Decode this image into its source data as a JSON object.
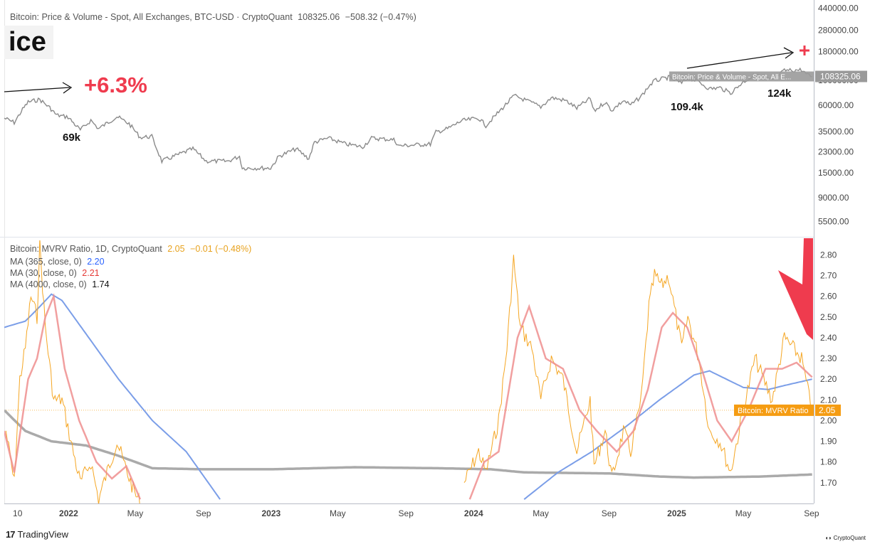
{
  "header": {
    "price_legend_title": "Bitcoin: Price & Volume - Spot, All Exchanges, BTC-USD · CryptoQuant",
    "price_legend_value": "108325.06",
    "price_legend_change": "−508.32 (−0.47%)",
    "price_label_snippet": "ice"
  },
  "indicator_legend": {
    "title": "Bitcoin: MVRV Ratio, 1D, CryptoQuant",
    "value": "2.05",
    "change": "−0.01 (−0.48%)",
    "ma365_label": "MA (365, close, 0)",
    "ma365_value": "2.20",
    "ma30_label": "MA (30, close, 0)",
    "ma30_value": "2.21",
    "ma4000_label": "MA (4000, close, 0)",
    "ma4000_value": "1.74"
  },
  "annotations": {
    "pct": "+6.3%",
    "high1": "69k",
    "high2": "109.4k",
    "high3": "124k"
  },
  "colors": {
    "price": "#8a8a8a",
    "mvrv": "#f5a623",
    "ma365": "#7b9ee8",
    "ma30": "#ef8e8e",
    "ma4000": "#aaaaaa",
    "annotation_red": "#ef3b4e"
  },
  "branding": {
    "tradingview": "TradingView",
    "cryptoquant": "CryptoQuant"
  },
  "chart_data": [
    {
      "type": "line",
      "name_legend": "Bitcoin: Price & Volume - Spot, All Exchanges, BTC-USD · CryptoQuant",
      "yscale": "log",
      "ylim": [
        4200,
        450000
      ],
      "y_ticks": [
        440000,
        280000,
        180000,
        100000,
        60000,
        35000,
        23000,
        15000,
        9000,
        5500
      ],
      "y_tick_labels": [
        "440000.00",
        "280000.00",
        "180000.00",
        "100000.00",
        "60000.00",
        "35000.00",
        "23000.00",
        "15000.00",
        "9000.00",
        "5500.00"
      ],
      "last_value_label": "108325.06",
      "last_value_tag": "Bitcoin: Price & Volume - Spot, All E...",
      "series": [
        {
          "values": [
            [
              "2021-09-07",
              46000
            ],
            [
              "2021-09-25",
              42000
            ],
            [
              "2021-10-10",
              55000
            ],
            [
              "2021-10-20",
              64000
            ],
            [
              "2021-11-10",
              67500
            ],
            [
              "2021-11-28",
              57000
            ],
            [
              "2021-12-10",
              49000
            ],
            [
              "2021-12-31",
              47000
            ],
            [
              "2022-01-22",
              36000
            ],
            [
              "2022-02-10",
              44000
            ],
            [
              "2022-02-24",
              37000
            ],
            [
              "2022-03-29",
              47500
            ],
            [
              "2022-04-20",
              41000
            ],
            [
              "2022-05-10",
              31000
            ],
            [
              "2022-05-31",
              31500
            ],
            [
              "2022-06-18",
              19000
            ],
            [
              "2022-07-10",
              21000
            ],
            [
              "2022-08-13",
              24500
            ],
            [
              "2022-09-06",
              19000
            ],
            [
              "2022-10-15",
              19000
            ],
            [
              "2022-11-05",
              21000
            ],
            [
              "2022-11-10",
              16500
            ],
            [
              "2022-12-31",
              16500
            ],
            [
              "2023-01-15",
              21000
            ],
            [
              "2023-02-15",
              24500
            ],
            [
              "2023-03-10",
              20000
            ],
            [
              "2023-03-20",
              28000
            ],
            [
              "2023-04-14",
              30500
            ],
            [
              "2023-05-15",
              27000
            ],
            [
              "2023-06-15",
              25500
            ],
            [
              "2023-07-01",
              30500
            ],
            [
              "2023-08-10",
              29500
            ],
            [
              "2023-08-20",
              26000
            ],
            [
              "2023-09-15",
              26500
            ],
            [
              "2023-10-15",
              27000
            ],
            [
              "2023-10-25",
              34500
            ],
            [
              "2023-11-15",
              37000
            ],
            [
              "2023-12-10",
              43500
            ],
            [
              "2024-01-10",
              46000
            ],
            [
              "2024-01-23",
              39500
            ],
            [
              "2024-02-15",
              52000
            ],
            [
              "2024-03-14",
              73000
            ],
            [
              "2024-04-15",
              63000
            ],
            [
              "2024-05-01",
              58000
            ],
            [
              "2024-05-20",
              70000
            ],
            [
              "2024-06-15",
              66000
            ],
            [
              "2024-07-05",
              56500
            ],
            [
              "2024-07-29",
              69000
            ],
            [
              "2024-08-05",
              53000
            ],
            [
              "2024-08-25",
              64000
            ],
            [
              "2024-09-06",
              54000
            ],
            [
              "2024-09-27",
              66000
            ],
            [
              "2024-10-10",
              60000
            ],
            [
              "2024-10-29",
              72000
            ],
            [
              "2024-11-12",
              89000
            ],
            [
              "2024-11-22",
              99000
            ],
            [
              "2024-12-17",
              106000
            ],
            [
              "2025-01-10",
              94000
            ],
            [
              "2025-01-21",
              105000
            ],
            [
              "2025-02-10",
              97000
            ],
            [
              "2025-03-01",
              84000
            ],
            [
              "2025-03-20",
              86000
            ],
            [
              "2025-04-08",
              77000
            ],
            [
              "2025-05-01",
              97000
            ],
            [
              "2025-05-22",
              111000
            ],
            [
              "2025-06-22",
              100000
            ],
            [
              "2025-07-14",
              122000
            ],
            [
              "2025-08-14",
              124000
            ],
            [
              "2025-08-25",
              111000
            ],
            [
              "2025-09-02",
              108300
            ]
          ]
        }
      ]
    },
    {
      "type": "line",
      "title": "Bitcoin: MVRV Ratio, 1D, CryptoQuant",
      "ylim": [
        1.6,
        2.87
      ],
      "y_ticks": [
        2.8,
        2.7,
        2.6,
        2.5,
        2.4,
        2.3,
        2.2,
        2.1,
        2.0,
        1.9,
        1.8,
        1.7
      ],
      "x_ticks": [
        "10",
        "2022",
        "May",
        "Sep",
        "2023",
        "May",
        "Sep",
        "2024",
        "May",
        "Sep",
        "2025",
        "May",
        "Sep"
      ],
      "x_tick_dates": [
        "2021-10-01",
        "2022-01-01",
        "2022-05-01",
        "2022-09-01",
        "2023-01-01",
        "2023-05-01",
        "2023-09-01",
        "2024-01-01",
        "2024-05-01",
        "2024-09-01",
        "2025-01-01",
        "2025-05-01",
        "2025-09-01"
      ],
      "xlim": [
        "2021-09-07",
        "2025-09-05"
      ],
      "last_value_label": "2.05",
      "last_value_tag": "Bitcoin: MVRV Ratio",
      "series": [
        {
          "name": "Bitcoin: MVRV Ratio",
          "values": [
            [
              "2021-09-10",
              1.95
            ],
            [
              "2021-09-25",
              1.7
            ],
            [
              "2021-10-05",
              2.2
            ],
            [
              "2021-10-15",
              2.35
            ],
            [
              "2021-10-25",
              2.6
            ],
            [
              "2021-11-05",
              2.5
            ],
            [
              "2021-11-10",
              2.85
            ],
            [
              "2021-11-20",
              2.45
            ],
            [
              "2021-12-05",
              2.1
            ],
            [
              "2021-12-20",
              2.1
            ],
            [
              "2022-01-05",
              1.9
            ],
            [
              "2022-01-22",
              1.7
            ],
            [
              "2022-02-10",
              1.8
            ],
            [
              "2022-02-24",
              1.62
            ],
            [
              "2022-03-29",
              1.9
            ],
            [
              "2022-04-10",
              1.8
            ],
            [
              "2022-04-30",
              1.65
            ],
            [
              "2022-05-15",
              1.58
            ],
            [
              "2023-12-15",
              1.7
            ],
            [
              "2024-01-10",
              1.85
            ],
            [
              "2024-01-23",
              1.75
            ],
            [
              "2024-02-15",
              2.0
            ],
            [
              "2024-03-01",
              2.35
            ],
            [
              "2024-03-13",
              2.78
            ],
            [
              "2024-03-25",
              2.45
            ],
            [
              "2024-04-15",
              2.35
            ],
            [
              "2024-05-01",
              2.1
            ],
            [
              "2024-05-20",
              2.3
            ],
            [
              "2024-06-10",
              2.2
            ],
            [
              "2024-07-05",
              1.85
            ],
            [
              "2024-07-29",
              2.1
            ],
            [
              "2024-08-05",
              1.78
            ],
            [
              "2024-08-25",
              1.95
            ],
            [
              "2024-09-06",
              1.72
            ],
            [
              "2024-09-27",
              1.95
            ],
            [
              "2024-10-10",
              1.85
            ],
            [
              "2024-10-29",
              2.1
            ],
            [
              "2024-11-12",
              2.55
            ],
            [
              "2024-11-22",
              2.7
            ],
            [
              "2024-12-05",
              2.65
            ],
            [
              "2024-12-17",
              2.7
            ],
            [
              "2025-01-10",
              2.35
            ],
            [
              "2025-01-21",
              2.5
            ],
            [
              "2025-02-10",
              2.3
            ],
            [
              "2025-03-01",
              1.95
            ],
            [
              "2025-03-20",
              1.9
            ],
            [
              "2025-04-08",
              1.75
            ],
            [
              "2025-05-01",
              2.05
            ],
            [
              "2025-05-22",
              2.3
            ],
            [
              "2025-06-22",
              2.1
            ],
            [
              "2025-07-14",
              2.4
            ],
            [
              "2025-08-14",
              2.3
            ],
            [
              "2025-08-25",
              2.15
            ],
            [
              "2025-09-02",
              2.05
            ]
          ]
        },
        {
          "name": "MA (365, close, 0)",
          "values": [
            [
              "2021-09-07",
              2.45
            ],
            [
              "2021-10-15",
              2.48
            ],
            [
              "2021-11-10",
              2.55
            ],
            [
              "2021-12-01",
              2.61
            ],
            [
              "2021-12-20",
              2.58
            ],
            [
              "2022-02-01",
              2.42
            ],
            [
              "2022-04-01",
              2.2
            ],
            [
              "2022-06-01",
              2.0
            ],
            [
              "2022-08-01",
              1.85
            ],
            [
              "2022-10-01",
              1.62
            ],
            [
              "2024-04-01",
              1.62
            ],
            [
              "2024-06-01",
              1.75
            ],
            [
              "2024-08-01",
              1.85
            ],
            [
              "2024-10-01",
              1.97
            ],
            [
              "2024-12-01",
              2.1
            ],
            [
              "2025-02-01",
              2.22
            ],
            [
              "2025-03-01",
              2.24
            ],
            [
              "2025-05-01",
              2.16
            ],
            [
              "2025-06-15",
              2.15
            ],
            [
              "2025-07-15",
              2.17
            ],
            [
              "2025-09-02",
              2.2
            ]
          ]
        },
        {
          "name": "MA (30, close, 0)",
          "values": [
            [
              "2021-09-07",
              1.95
            ],
            [
              "2021-09-25",
              1.75
            ],
            [
              "2021-10-20",
              2.2
            ],
            [
              "2021-11-05",
              2.3
            ],
            [
              "2021-11-20",
              2.5
            ],
            [
              "2021-12-05",
              2.6
            ],
            [
              "2021-12-25",
              2.25
            ],
            [
              "2022-01-20",
              2.0
            ],
            [
              "2022-02-20",
              1.8
            ],
            [
              "2022-03-20",
              1.72
            ],
            [
              "2022-04-15",
              1.78
            ],
            [
              "2022-05-10",
              1.62
            ],
            [
              "2023-12-25",
              1.62
            ],
            [
              "2024-01-20",
              1.8
            ],
            [
              "2024-02-15",
              1.85
            ],
            [
              "2024-03-20",
              2.4
            ],
            [
              "2024-04-10",
              2.55
            ],
            [
              "2024-05-10",
              2.3
            ],
            [
              "2024-06-10",
              2.25
            ],
            [
              "2024-07-10",
              2.05
            ],
            [
              "2024-08-10",
              1.95
            ],
            [
              "2024-09-15",
              1.85
            ],
            [
              "2024-10-15",
              1.95
            ],
            [
              "2024-11-10",
              2.15
            ],
            [
              "2024-12-05",
              2.45
            ],
            [
              "2024-12-25",
              2.52
            ],
            [
              "2025-01-20",
              2.45
            ],
            [
              "2025-02-15",
              2.25
            ],
            [
              "2025-03-15",
              2.0
            ],
            [
              "2025-04-10",
              1.9
            ],
            [
              "2025-05-10",
              2.05
            ],
            [
              "2025-06-10",
              2.25
            ],
            [
              "2025-07-10",
              2.25
            ],
            [
              "2025-08-05",
              2.28
            ],
            [
              "2025-09-02",
              2.21
            ]
          ]
        },
        {
          "name": "MA (4000, close, 0)",
          "values": [
            [
              "2021-09-07",
              2.05
            ],
            [
              "2021-10-15",
              1.95
            ],
            [
              "2021-12-01",
              1.9
            ],
            [
              "2022-02-01",
              1.88
            ],
            [
              "2022-04-01",
              1.83
            ],
            [
              "2022-06-01",
              1.77
            ],
            [
              "2022-09-01",
              1.765
            ],
            [
              "2023-01-01",
              1.765
            ],
            [
              "2023-06-01",
              1.775
            ],
            [
              "2023-11-01",
              1.77
            ],
            [
              "2024-02-01",
              1.765
            ],
            [
              "2024-04-01",
              1.75
            ],
            [
              "2024-09-01",
              1.745
            ],
            [
              "2024-12-01",
              1.73
            ],
            [
              "2025-02-01",
              1.725
            ],
            [
              "2025-06-01",
              1.73
            ],
            [
              "2025-09-02",
              1.74
            ]
          ]
        }
      ]
    }
  ]
}
